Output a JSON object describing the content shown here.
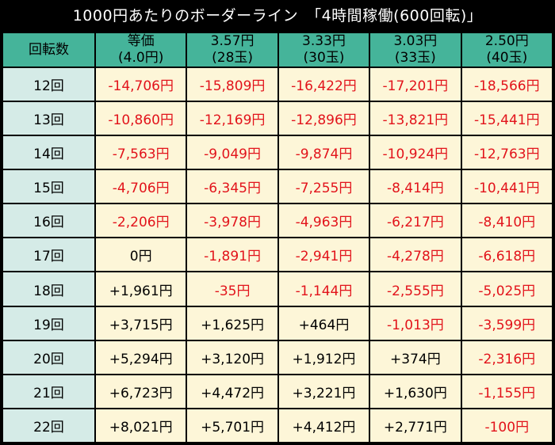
{
  "title": "1000円あたりのボーダーライン　「4時間稼働(600回転)」",
  "header": {
    "corner": "回転数",
    "columns": [
      {
        "line1": "等価",
        "line2": "(4.0円)"
      },
      {
        "line1": "3.57円",
        "line2": "(28玉)"
      },
      {
        "line1": "3.33円",
        "line2": "(30玉)"
      },
      {
        "line1": "3.03円",
        "line2": "(33玉)"
      },
      {
        "line1": "2.50円",
        "line2": "(40玉)"
      }
    ]
  },
  "rows": [
    {
      "label": "12回",
      "values": [
        "-14,706円",
        "-15,809円",
        "-16,422円",
        "-17,201円",
        "-18,566円"
      ]
    },
    {
      "label": "13回",
      "values": [
        "-10,860円",
        "-12,169円",
        "-12,896円",
        "-13,821円",
        "-15,441円"
      ]
    },
    {
      "label": "14回",
      "values": [
        "-7,563円",
        "-9,049円",
        "-9,874円",
        "-10,924円",
        "-12,763円"
      ]
    },
    {
      "label": "15回",
      "values": [
        "-4,706円",
        "-6,345円",
        "-7,255円",
        "-8,414円",
        "-10,441円"
      ]
    },
    {
      "label": "16回",
      "values": [
        "-2,206円",
        "-3,978円",
        "-4,963円",
        "-6,217円",
        "-8,410円"
      ]
    },
    {
      "label": "17回",
      "values": [
        "0円",
        "-1,891円",
        "-2,941円",
        "-4,278円",
        "-6,618円"
      ]
    },
    {
      "label": "18回",
      "values": [
        "+1,961円",
        "-35円",
        "-1,144円",
        "-2,555円",
        "-5,025円"
      ]
    },
    {
      "label": "19回",
      "values": [
        "+3,715円",
        "+1,625円",
        "+464円",
        "-1,013円",
        "-3,599円"
      ]
    },
    {
      "label": "20回",
      "values": [
        "+5,294円",
        "+3,120円",
        "+1,912円",
        "+374円",
        "-2,316円"
      ]
    },
    {
      "label": "21回",
      "values": [
        "+6,723円",
        "+4,472円",
        "+3,221円",
        "+1,630円",
        "-1,155円"
      ]
    },
    {
      "label": "22回",
      "values": [
        "+8,021円",
        "+5,701円",
        "+4,412円",
        "+2,771円",
        "-100円"
      ]
    }
  ],
  "colors": {
    "background": "#000000",
    "header_bg": "#45b49a",
    "row_label_bg": "#d5ebe7",
    "cell_bg": "#fdf6d8",
    "negative": "#e2131b",
    "positive": "#000000"
  }
}
